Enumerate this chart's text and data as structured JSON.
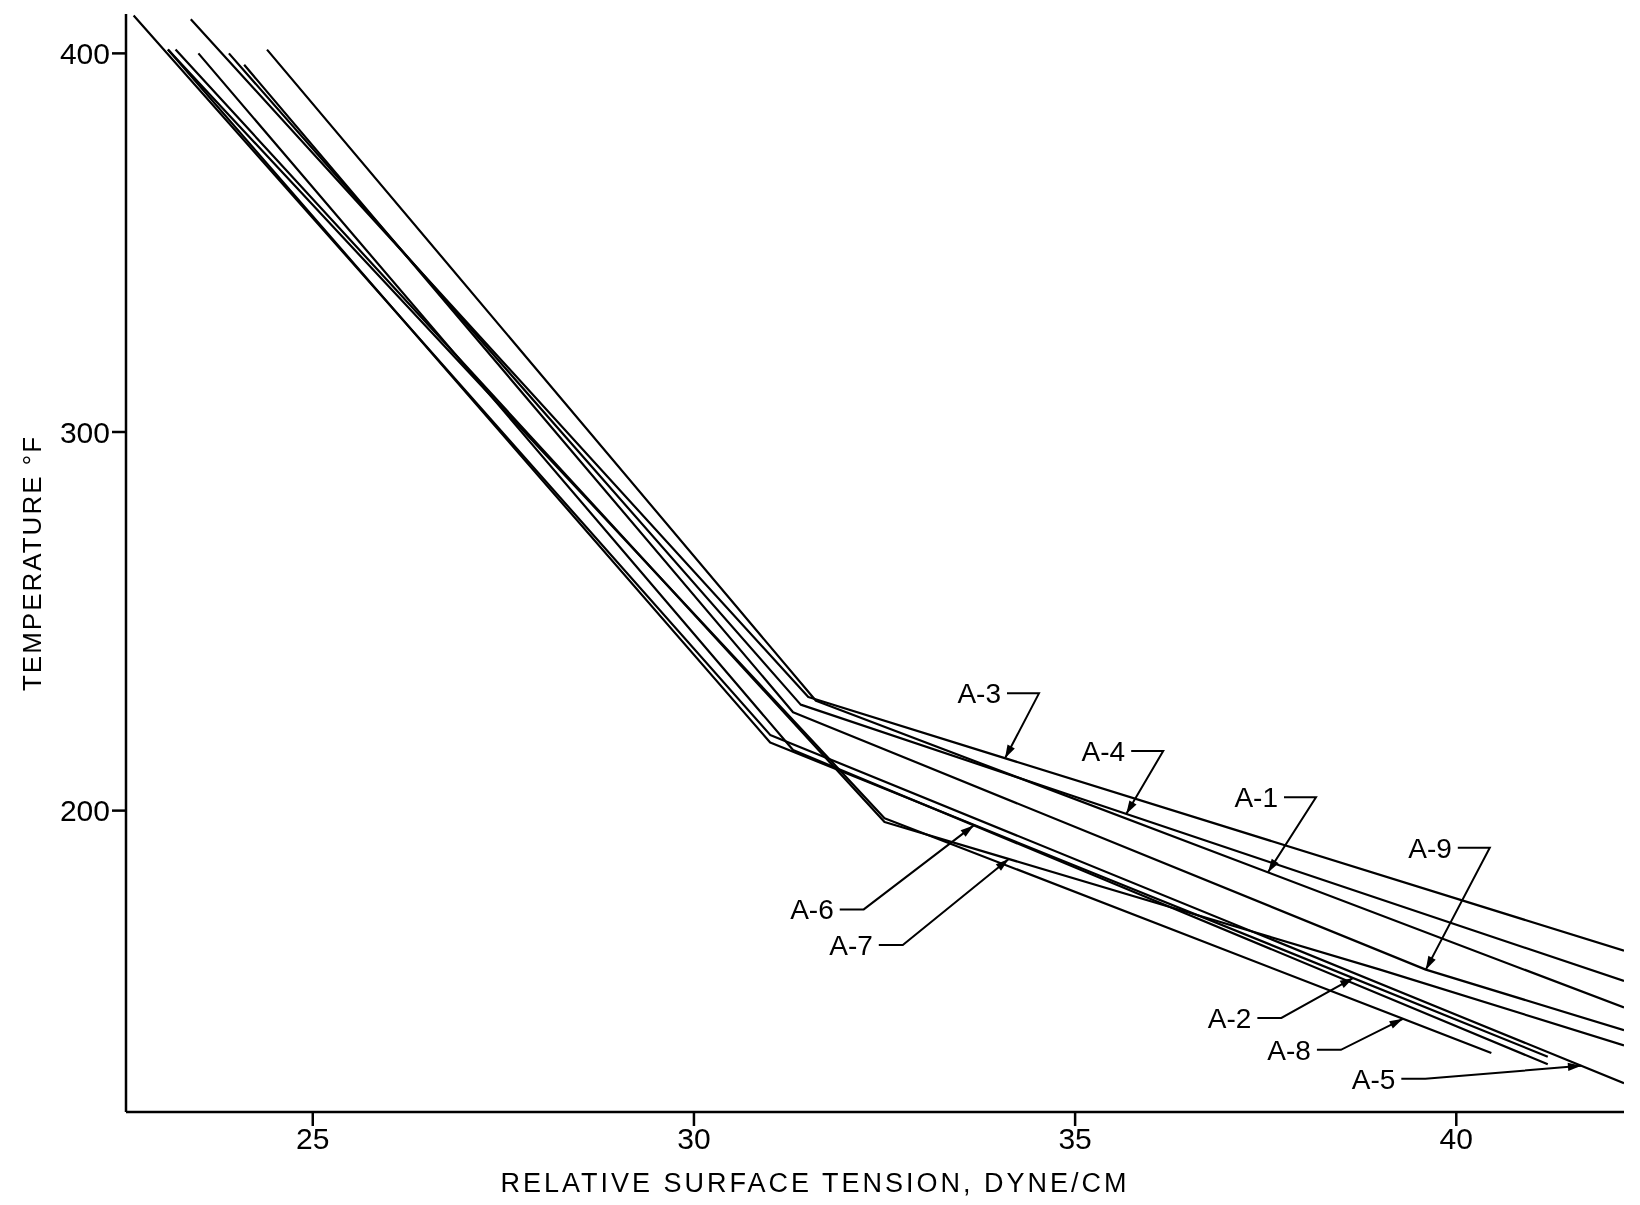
{
  "chart_data": {
    "type": "line",
    "xlabel": "RELATIVE SURFACE TENSION, DYNE/CM",
    "ylabel": "TEMPERATURE °F",
    "xlim": [
      22.55,
      42.2
    ],
    "ylim": [
      120.4,
      410.4
    ],
    "xticks": [
      25,
      30,
      35,
      40
    ],
    "yticks": [
      200,
      300,
      400
    ],
    "grid": false,
    "marker": "none",
    "line_style": "solid",
    "series": [
      {
        "x": [
          23.4,
          31.5,
          42.2
        ],
        "values": [
          409,
          230,
          163
        ],
        "color": "#000000"
      },
      {
        "x": [
          23.9,
          31.4,
          42.2
        ],
        "values": [
          400,
          228,
          155
        ],
        "color": "#000000"
      },
      {
        "x": [
          24.4,
          31.6,
          42.2
        ],
        "values": [
          401,
          229,
          148
        ],
        "color": "#000000"
      },
      {
        "x": [
          24.1,
          31.3,
          39.6,
          42.2
        ],
        "values": [
          397,
          226,
          158,
          142
        ],
        "color": "#000000"
      },
      {
        "x": [
          22.65,
          31.0,
          42.2
        ],
        "values": [
          410,
          220,
          128
        ],
        "color": "#000000"
      },
      {
        "x": [
          23.1,
          31.0,
          41.2
        ],
        "values": [
          401,
          218,
          135
        ],
        "color": "#000000"
      },
      {
        "x": [
          23.5,
          31.3,
          41.2
        ],
        "values": [
          400,
          216,
          133
        ],
        "color": "#000000"
      },
      {
        "x": [
          23.2,
          32.5,
          39.0,
          42.2
        ],
        "values": [
          401,
          197,
          158,
          138
        ],
        "color": "#000000"
      },
      {
        "x": [
          23.1,
          32.5,
          40.46
        ],
        "values": [
          401,
          198,
          136
        ],
        "color": "#000000"
      }
    ],
    "annotations": [
      {
        "text": "A-3",
        "x": 34.08,
        "y": 213.8
      },
      {
        "text": "A-4",
        "x": 35.67,
        "y": 199.1
      },
      {
        "text": "A-1",
        "x": 37.53,
        "y": 183.7
      },
      {
        "text": "A-9",
        "x": 39.6,
        "y": 158
      },
      {
        "text": "A-2",
        "x": 38.65,
        "y": 155.8
      },
      {
        "text": "A-8",
        "x": 39.3,
        "y": 145
      },
      {
        "text": "A-5",
        "x": 41.64,
        "y": 132.6
      },
      {
        "text": "A-6",
        "x": 33.67,
        "y": 196.1
      },
      {
        "text": "A-7",
        "x": 34.13,
        "y": 187.2
      }
    ]
  }
}
